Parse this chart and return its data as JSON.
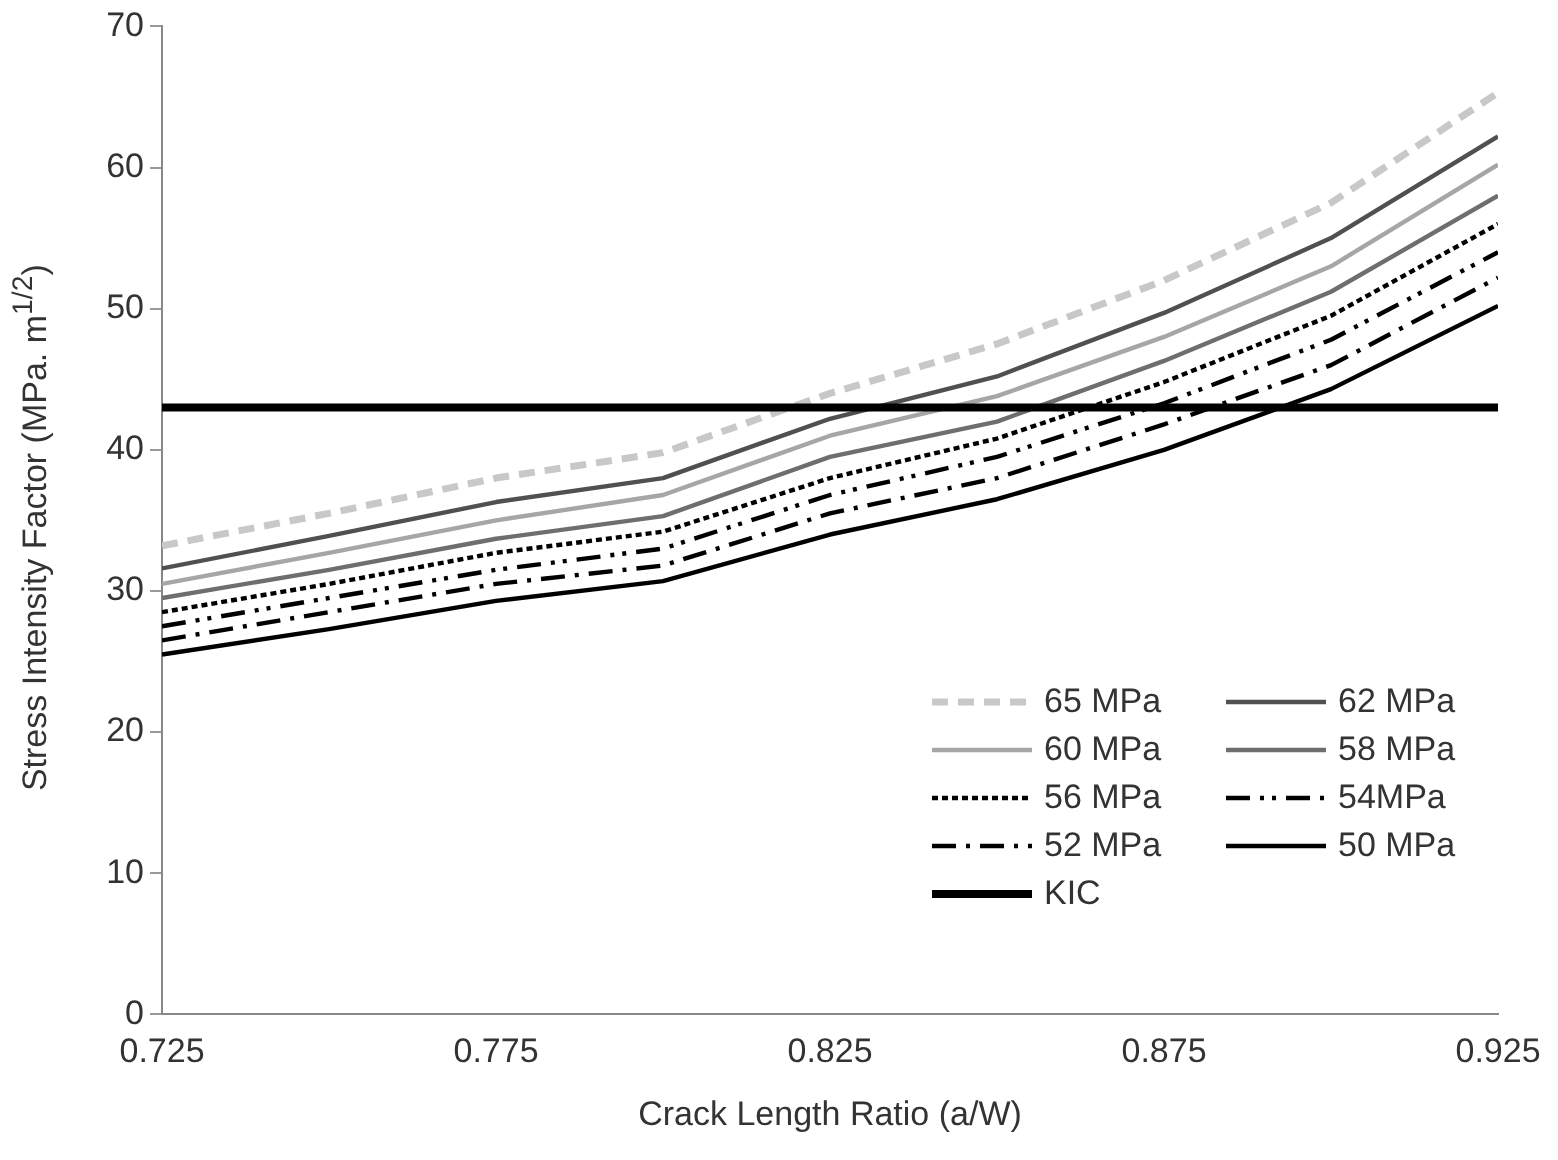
{
  "chart_data": {
    "type": "line",
    "xlabel": "Crack Length Ratio (a/W)",
    "ylabel": "Stress Intensity Factor  (MPa. m$^{1/2}$)",
    "x": [
      0.725,
      0.75,
      0.775,
      0.8,
      0.825,
      0.85,
      0.875,
      0.9,
      0.925
    ],
    "xlim": [
      0.725,
      0.925
    ],
    "xticks": [
      {
        "value": 0.725,
        "label": "0.725"
      },
      {
        "value": 0.775,
        "label": "0.775"
      },
      {
        "value": 0.825,
        "label": "0.825"
      },
      {
        "value": 0.875,
        "label": "0.875"
      },
      {
        "value": 0.925,
        "label": "0.925"
      }
    ],
    "ylim": [
      0,
      70
    ],
    "yticks": [
      0,
      10,
      20,
      30,
      40,
      50,
      60,
      70
    ],
    "grid": false,
    "legend": "bottom right",
    "marker": "none",
    "series": [
      {
        "name": "65 MPa",
        "color": "#c8c8c8",
        "line_style": "dashed",
        "values": [
          33.2,
          35.5,
          38,
          39.8,
          44,
          47.5,
          52,
          57.5,
          65.3
        ]
      },
      {
        "name": "62 MPa",
        "color": "#505050",
        "line_style": "solid",
        "values": [
          31.6,
          33.9,
          36.3,
          38,
          42.2,
          45.2,
          49.7,
          55,
          62.2
        ]
      },
      {
        "name": "60 MPa",
        "color": "#a6a6a6",
        "line_style": "solid",
        "values": [
          30.5,
          32.7,
          35,
          36.8,
          41,
          43.8,
          48,
          53,
          60.2
        ]
      },
      {
        "name": "58 MPa",
        "color": "#6e6e6e",
        "line_style": "solid",
        "values": [
          29.5,
          31.5,
          33.7,
          35.3,
          39.5,
          42,
          46.3,
          51.2,
          58
        ]
      },
      {
        "name": "56 MPa",
        "color": "#000000",
        "line_style": "dotted",
        "values": [
          28.5,
          30.5,
          32.7,
          34.2,
          38,
          40.8,
          44.8,
          49.5,
          56
        ]
      },
      {
        "name": "54MPa",
        "color": "#000000",
        "line_style": "dashdotdot",
        "values": [
          27.5,
          29.5,
          31.5,
          33,
          36.8,
          39.5,
          43.3,
          47.8,
          54
        ]
      },
      {
        "name": "52 MPa",
        "color": "#000000",
        "line_style": "dashdot",
        "values": [
          26.5,
          28.5,
          30.5,
          31.8,
          35.5,
          38,
          41.8,
          46,
          52.2
        ]
      },
      {
        "name": "50 MPa",
        "color": "#000000",
        "line_style": "solid",
        "values": [
          25.5,
          27.3,
          29.3,
          30.7,
          34,
          36.5,
          40,
          44.3,
          50.2
        ]
      }
    ],
    "ref_lines": [
      {
        "axis": "y",
        "value": 43,
        "label": "KIC",
        "color": "#000000",
        "line_style": "solid"
      }
    ]
  }
}
